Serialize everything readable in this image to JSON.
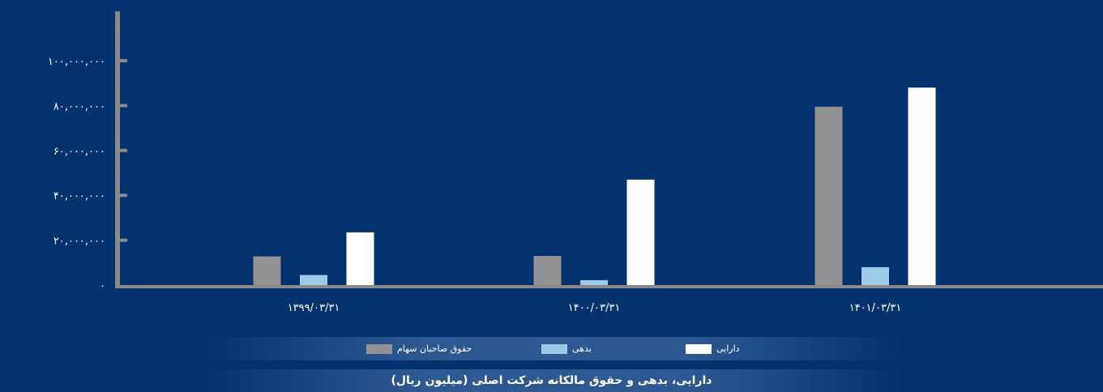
{
  "colors": {
    "background": "#02336f",
    "axis": "#8a8a8a",
    "text": "#ffffff"
  },
  "chart_data": {
    "type": "bar",
    "categories": [
      "۱۳۹۹/۰۳/۳۱",
      "۱۴۰۰/۰۳/۳۱",
      "۱۴۰۱/۰۳/۳۱"
    ],
    "series": [
      {
        "name": "حقوق صاحبان سهام",
        "color": "#929292",
        "values": [
          12800000,
          13000000,
          79500000
        ]
      },
      {
        "name": "بدهی",
        "color": "#9ccbe9",
        "values": [
          4500000,
          2200000,
          8000000
        ]
      },
      {
        "name": "دارایی",
        "color": "#ffffff",
        "values": [
          23500000,
          47000000,
          88000000
        ]
      }
    ],
    "y_ticks": [
      {
        "value": 0,
        "label": "۰"
      },
      {
        "value": 20000000,
        "label": "۲۰,۰۰۰,۰۰۰"
      },
      {
        "value": 40000000,
        "label": "۴۰,۰۰۰,۰۰۰"
      },
      {
        "value": 60000000,
        "label": "۶۰,۰۰۰,۰۰۰"
      },
      {
        "value": 80000000,
        "label": "۸۰,۰۰۰,۰۰۰"
      },
      {
        "value": 100000000,
        "label": "۱۰۰,۰۰۰,۰۰۰"
      }
    ],
    "ylim": [
      0,
      122000000
    ],
    "grid": false,
    "legend_position": "bottom",
    "title": "دارایی، بدهی و حقوق مالکانه شرکت اصلی (میلیون ریال)",
    "xlabel": "",
    "ylabel": ""
  }
}
